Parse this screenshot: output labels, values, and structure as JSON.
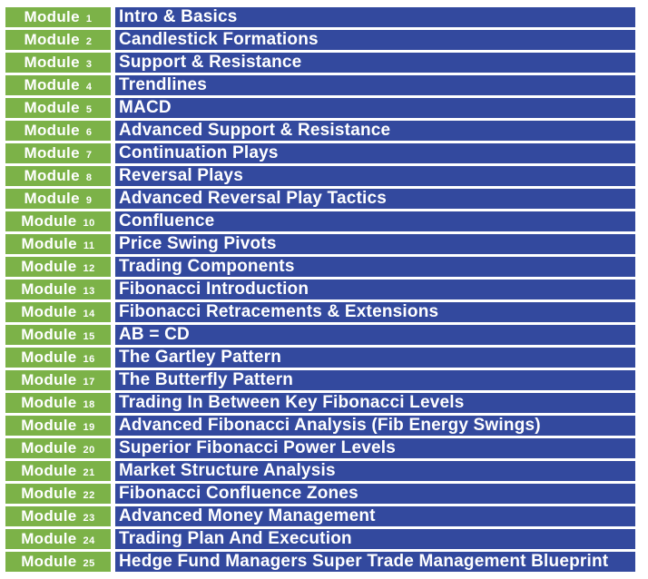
{
  "table": {
    "module_label": "Module",
    "colors": {
      "module_bg": "#7CB248",
      "title_bg": "#33499E",
      "text": "#FFFFFF",
      "gap": "#FFFFFF"
    },
    "rows": [
      {
        "number": "1",
        "title": "Intro & Basics"
      },
      {
        "number": "2",
        "title": "Candlestick Formations"
      },
      {
        "number": "3",
        "title": "Support & Resistance"
      },
      {
        "number": "4",
        "title": "Trendlines"
      },
      {
        "number": "5",
        "title": "MACD"
      },
      {
        "number": "6",
        "title": "Advanced Support & Resistance"
      },
      {
        "number": "7",
        "title": "Continuation Plays"
      },
      {
        "number": "8",
        "title": "Reversal Plays"
      },
      {
        "number": "9",
        "title": "Advanced Reversal Play Tactics"
      },
      {
        "number": "10",
        "title": "Confluence"
      },
      {
        "number": "11",
        "title": "Price Swing Pivots"
      },
      {
        "number": "12",
        "title": "Trading Components"
      },
      {
        "number": "13",
        "title": "Fibonacci Introduction"
      },
      {
        "number": "14",
        "title": "Fibonacci Retracements & Extensions"
      },
      {
        "number": "15",
        "title": "AB = CD"
      },
      {
        "number": "16",
        "title": "The Gartley Pattern"
      },
      {
        "number": "17",
        "title": "The Butterfly Pattern"
      },
      {
        "number": "18",
        "title": "Trading In Between Key Fibonacci Levels"
      },
      {
        "number": "19",
        "title": "Advanced Fibonacci Analysis (Fib Energy Swings)"
      },
      {
        "number": "20",
        "title": "Superior Fibonacci Power Levels"
      },
      {
        "number": "21",
        "title": "Market Structure Analysis"
      },
      {
        "number": "22",
        "title": "Fibonacci Confluence Zones"
      },
      {
        "number": "23",
        "title": "Advanced Money Management"
      },
      {
        "number": "24",
        "title": "Trading Plan And Execution"
      },
      {
        "number": "25",
        "title": "Hedge Fund Managers Super Trade Management Blueprint"
      }
    ]
  }
}
